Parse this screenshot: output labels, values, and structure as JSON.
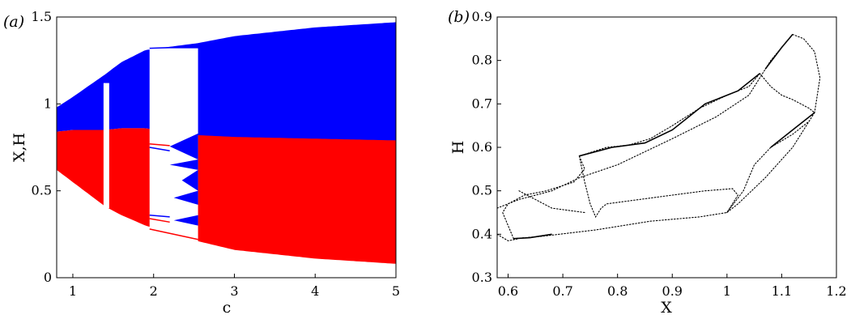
{
  "chart_data": [
    {
      "type": "scatter",
      "panel_label": "(a)",
      "xlabel": "c",
      "ylabel": "X,H",
      "xlim": [
        0.8,
        5
      ],
      "ylim": [
        0,
        1.5
      ],
      "xticks": [
        1,
        2,
        3,
        4,
        5
      ],
      "yticks": [
        0,
        0.5,
        1,
        1.5
      ],
      "xtick_labels": [
        "1",
        "2",
        "3",
        "4",
        "5"
      ],
      "ytick_labels": [
        "0",
        "0.5",
        "1",
        "1.5"
      ],
      "grid": false,
      "series": [
        {
          "color": "#0000ff",
          "description_points": [],
          "bands": [
            {
              "c": 0.8,
              "lo": 0.84,
              "hi": 0.98
            },
            {
              "c": 1.0,
              "lo": 0.85,
              "hi": 1.04
            },
            {
              "c": 1.4,
              "lo": 0.85,
              "hi": 1.17
            },
            {
              "c": 1.6,
              "lo": 0.86,
              "hi": 1.24
            },
            {
              "c": 1.9,
              "lo": 0.86,
              "hi": 1.31
            },
            {
              "c": 2.55,
              "lo": 0.81,
              "hi": 1.35
            },
            {
              "c": 3.0,
              "lo": 0.8,
              "hi": 1.39
            },
            {
              "c": 4.0,
              "lo": 0.79,
              "hi": 1.44
            },
            {
              "c": 5.0,
              "lo": 0.78,
              "hi": 1.47
            }
          ]
        },
        {
          "color": "#ff0000",
          "bands": [
            {
              "c": 0.8,
              "lo": 0.62,
              "hi": 0.84
            },
            {
              "c": 1.0,
              "lo": 0.55,
              "hi": 0.85
            },
            {
              "c": 1.4,
              "lo": 0.41,
              "hi": 0.85
            },
            {
              "c": 1.6,
              "lo": 0.36,
              "hi": 0.86
            },
            {
              "c": 1.9,
              "lo": 0.3,
              "hi": 0.86
            },
            {
              "c": 2.55,
              "lo": 0.21,
              "hi": 0.82
            },
            {
              "c": 3.0,
              "lo": 0.16,
              "hi": 0.81
            },
            {
              "c": 4.0,
              "lo": 0.11,
              "hi": 0.8
            },
            {
              "c": 5.0,
              "lo": 0.08,
              "hi": 0.79
            }
          ]
        }
      ],
      "periodic_window": {
        "c_start": 1.95,
        "c_end": 2.55
      },
      "gap_window": {
        "c_start": 1.38,
        "c_end": 1.45
      }
    },
    {
      "type": "scatter",
      "panel_label": "(b)",
      "xlabel": "X",
      "ylabel": "H",
      "xlim": [
        0.58,
        1.2
      ],
      "ylim": [
        0.3,
        0.9
      ],
      "xticks": [
        0.6,
        0.7,
        0.8,
        0.9,
        1,
        1.1,
        1.2
      ],
      "yticks": [
        0.3,
        0.4,
        0.5,
        0.6,
        0.7,
        0.8,
        0.9
      ],
      "xtick_labels": [
        "0.6",
        "0.7",
        "0.8",
        "0.9",
        "1",
        "1.1",
        "1.2"
      ],
      "ytick_labels": [
        "0.3",
        "0.4",
        "0.5",
        "0.6",
        "0.7",
        "0.8",
        "0.9"
      ],
      "grid": false,
      "series": [
        {
          "color": "#000000",
          "loops": [
            [
              [
                0.61,
                0.39
              ],
              [
                0.66,
                0.395
              ],
              [
                0.76,
                0.41
              ],
              [
                0.86,
                0.43
              ],
              [
                0.95,
                0.44
              ],
              [
                1.0,
                0.45
              ],
              [
                1.02,
                0.47
              ],
              [
                1.07,
                0.53
              ],
              [
                1.12,
                0.6
              ],
              [
                1.16,
                0.68
              ]
            ],
            [
              [
                0.58,
                0.46
              ],
              [
                0.62,
                0.48
              ],
              [
                0.68,
                0.5
              ],
              [
                0.73,
                0.53
              ],
              [
                0.8,
                0.56
              ],
              [
                0.9,
                0.62
              ],
              [
                0.98,
                0.67
              ],
              [
                1.04,
                0.72
              ],
              [
                1.08,
                0.8
              ],
              [
                1.12,
                0.86
              ]
            ],
            [
              [
                0.61,
                0.39
              ],
              [
                0.6,
                0.42
              ],
              [
                0.59,
                0.45
              ],
              [
                0.6,
                0.47
              ],
              [
                0.63,
                0.49
              ],
              [
                0.67,
                0.5
              ],
              [
                0.72,
                0.52
              ],
              [
                0.74,
                0.55
              ],
              [
                0.73,
                0.58
              ]
            ],
            [
              [
                0.73,
                0.58
              ],
              [
                0.78,
                0.6
              ],
              [
                0.82,
                0.605
              ],
              [
                0.86,
                0.62
              ],
              [
                0.9,
                0.65
              ],
              [
                0.95,
                0.69
              ],
              [
                1.0,
                0.72
              ],
              [
                1.04,
                0.74
              ],
              [
                1.06,
                0.77
              ]
            ],
            [
              [
                1.06,
                0.77
              ],
              [
                1.08,
                0.74
              ],
              [
                1.1,
                0.72
              ],
              [
                1.12,
                0.71
              ],
              [
                1.15,
                0.69
              ],
              [
                1.16,
                0.68
              ]
            ],
            [
              [
                1.12,
                0.86
              ],
              [
                1.14,
                0.85
              ],
              [
                1.16,
                0.82
              ],
              [
                1.17,
                0.76
              ],
              [
                1.16,
                0.68
              ]
            ],
            [
              [
                0.73,
                0.58
              ],
              [
                0.74,
                0.52
              ],
              [
                0.75,
                0.47
              ],
              [
                0.76,
                0.44
              ],
              [
                0.77,
                0.46
              ],
              [
                0.78,
                0.47
              ],
              [
                0.84,
                0.48
              ],
              [
                0.9,
                0.49
              ],
              [
                0.96,
                0.5
              ],
              [
                1.01,
                0.505
              ],
              [
                1.02,
                0.49
              ],
              [
                1.0,
                0.45
              ]
            ],
            [
              [
                1.0,
                0.45
              ],
              [
                1.03,
                0.5
              ],
              [
                1.05,
                0.56
              ],
              [
                1.08,
                0.6
              ],
              [
                1.12,
                0.63
              ],
              [
                1.15,
                0.66
              ]
            ],
            [
              [
                0.58,
                0.4
              ],
              [
                0.6,
                0.385
              ],
              [
                0.62,
                0.39
              ]
            ],
            [
              [
                0.62,
                0.5
              ],
              [
                0.68,
                0.46
              ],
              [
                0.74,
                0.45
              ]
            ]
          ]
        }
      ]
    }
  ]
}
